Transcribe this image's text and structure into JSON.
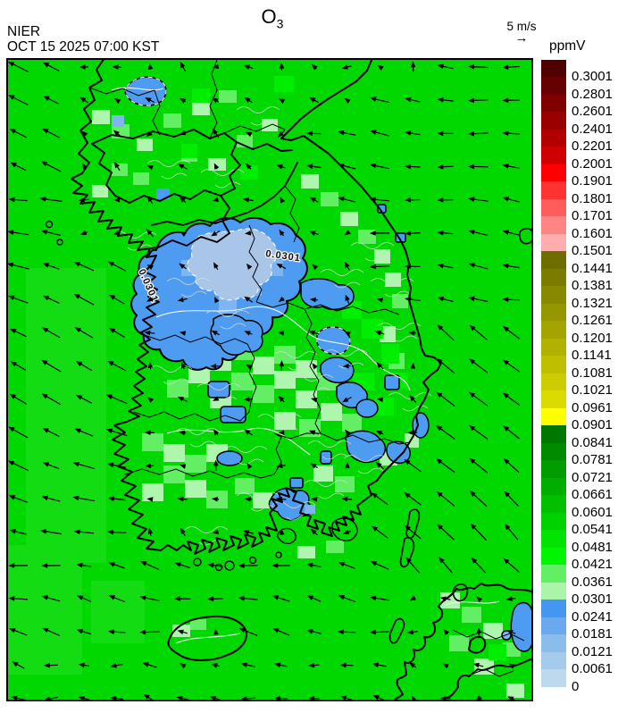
{
  "header": {
    "source": "NIER",
    "datetime": "OCT 15 2025 07:00 KST",
    "title": {
      "main": "O",
      "sub": "3"
    }
  },
  "wind_legend": {
    "label": "5 m/s",
    "arrow_icon": "→"
  },
  "colorbar": {
    "unit": "ppmV",
    "segments": [
      {
        "color": "#4f0000",
        "label": "0.3001"
      },
      {
        "color": "#670000",
        "label": "0.2801"
      },
      {
        "color": "#800000",
        "label": "0.2601"
      },
      {
        "color": "#990000",
        "label": "0.2401"
      },
      {
        "color": "#b20000",
        "label": "0.2201"
      },
      {
        "color": "#d00000",
        "label": "0.2001"
      },
      {
        "color": "#ff0000",
        "label": "0.1901"
      },
      {
        "color": "#ff3232",
        "label": "0.1801"
      },
      {
        "color": "#ff5c5c",
        "label": "0.1701"
      },
      {
        "color": "#ff8585",
        "label": "0.1601"
      },
      {
        "color": "#ffadad",
        "label": "0.1501"
      },
      {
        "color": "#6e6e00",
        "label": "0.1441"
      },
      {
        "color": "#7b7b00",
        "label": "0.1381"
      },
      {
        "color": "#898900",
        "label": "0.1321"
      },
      {
        "color": "#969600",
        "label": "0.1261"
      },
      {
        "color": "#a4a400",
        "label": "0.1201"
      },
      {
        "color": "#b1b100",
        "label": "0.1141"
      },
      {
        "color": "#bfbf00",
        "label": "0.1081"
      },
      {
        "color": "#cccc00",
        "label": "0.1021"
      },
      {
        "color": "#dbdb00",
        "label": "0.0961"
      },
      {
        "color": "#ffff00",
        "label": "0.0901"
      },
      {
        "color": "#007800",
        "label": "0.0841"
      },
      {
        "color": "#008a00",
        "label": "0.0781"
      },
      {
        "color": "#009c00",
        "label": "0.0721"
      },
      {
        "color": "#00ae00",
        "label": "0.0661"
      },
      {
        "color": "#00c000",
        "label": "0.0601"
      },
      {
        "color": "#00d200",
        "label": "0.0541"
      },
      {
        "color": "#00e400",
        "label": "0.0481"
      },
      {
        "color": "#00f600",
        "label": "0.0421"
      },
      {
        "color": "#63ef63",
        "label": "0.0361"
      },
      {
        "color": "#a9f5a9",
        "label": "0.0301"
      },
      {
        "color": "#4596f0",
        "label": "0.0241"
      },
      {
        "color": "#6aa9ee",
        "label": "0.0181"
      },
      {
        "color": "#8abcec",
        "label": "0.0121"
      },
      {
        "color": "#a4cbec",
        "label": "0.0061"
      },
      {
        "color": "#bcd9ee",
        "label": "0"
      }
    ]
  },
  "map": {
    "contour_labels": [
      "0.0301",
      "0.0301"
    ],
    "colors": {
      "base_green": "#00d800",
      "bright_green": "#00ee00",
      "light_green": "#63ef63",
      "pale_green": "#aef6ae",
      "blue": "#4d9cf2",
      "blue_light": "#7fb6f2",
      "blue_pale": "#a9c6e8",
      "coastline": "#000000",
      "county_line": "#d8d8d8",
      "contour_white": "#f4f4f4"
    }
  }
}
